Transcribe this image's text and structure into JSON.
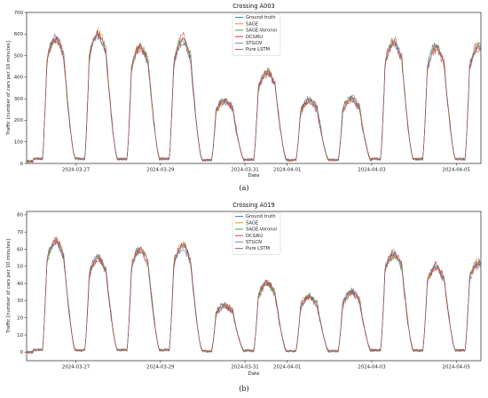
{
  "chart_data": [
    {
      "type": "line",
      "panel_label": "(a)",
      "title": "Crossing A003",
      "xlabel": "Date",
      "ylabel": "Traffic [number of cars per 10 minutes]",
      "x_range": [
        "2024-03-25T20:00",
        "2024-04-05T14:00"
      ],
      "x_ticks": [
        "2024-03-27",
        "2024-03-29",
        "2024-03-31",
        "2024-04-01",
        "2024-04-03",
        "2024-04-05"
      ],
      "ylim": [
        0,
        700
      ],
      "y_ticks": [
        0,
        100,
        200,
        300,
        400,
        500,
        600,
        700
      ],
      "grid": false,
      "legend_position": "top-center",
      "daily_peaks": [
        {
          "date": "2024-03-26",
          "peak": 580
        },
        {
          "date": "2024-03-27",
          "peak": 600
        },
        {
          "date": "2024-03-28",
          "peak": 540
        },
        {
          "date": "2024-03-29",
          "peak": 570
        },
        {
          "date": "2024-03-30",
          "peak": 290
        },
        {
          "date": "2024-03-31",
          "peak": 420
        },
        {
          "date": "2024-04-01",
          "peak": 290
        },
        {
          "date": "2024-04-02",
          "peak": 300
        },
        {
          "date": "2024-04-03",
          "peak": 560
        },
        {
          "date": "2024-04-04",
          "peak": 540
        },
        {
          "date": "2024-04-05",
          "peak": 540
        }
      ],
      "night_min": 10,
      "series": [
        {
          "name": "Ground truth",
          "color": "#1f77b4"
        },
        {
          "name": "SAGE",
          "color": "#ff7f0e"
        },
        {
          "name": "SAGE-Voronoi",
          "color": "#2ca02c"
        },
        {
          "name": "DCGRU",
          "color": "#d62728"
        },
        {
          "name": "STGCN",
          "color": "#9467bd"
        },
        {
          "name": "Pure LSTM",
          "color": "#8c564b"
        }
      ]
    },
    {
      "type": "line",
      "panel_label": "(b)",
      "title": "Crossing A019",
      "xlabel": "Date",
      "ylabel": "Traffic [number of cars per 10 minutes]",
      "x_range": [
        "2024-03-25T20:00",
        "2024-04-05T14:00"
      ],
      "x_ticks": [
        "2024-03-27",
        "2024-03-29",
        "2024-03-31",
        "2024-04-01",
        "2024-04-03",
        "2024-04-05"
      ],
      "ylim": [
        -5,
        82
      ],
      "y_ticks": [
        0,
        10,
        20,
        30,
        40,
        50,
        60,
        70,
        80
      ],
      "grid": false,
      "legend_position": "top-center",
      "daily_peaks": [
        {
          "date": "2024-03-26",
          "peak": 65
        },
        {
          "date": "2024-03-27",
          "peak": 55
        },
        {
          "date": "2024-03-28",
          "peak": 60
        },
        {
          "date": "2024-03-29",
          "peak": 62
        },
        {
          "date": "2024-03-30",
          "peak": 27
        },
        {
          "date": "2024-03-31",
          "peak": 40
        },
        {
          "date": "2024-04-01",
          "peak": 32
        },
        {
          "date": "2024-04-02",
          "peak": 35
        },
        {
          "date": "2024-04-03",
          "peak": 58
        },
        {
          "date": "2024-04-04",
          "peak": 50
        },
        {
          "date": "2024-04-05",
          "peak": 52
        }
      ],
      "night_min": 0,
      "series": [
        {
          "name": "Ground truth",
          "color": "#1f77b4"
        },
        {
          "name": "SAGE",
          "color": "#ff7f0e"
        },
        {
          "name": "SAGE-Voronoi",
          "color": "#2ca02c"
        },
        {
          "name": "DCGRU",
          "color": "#d62728"
        },
        {
          "name": "STGCN",
          "color": "#9467bd"
        },
        {
          "name": "Pure LSTM",
          "color": "#8c564b"
        }
      ]
    }
  ]
}
